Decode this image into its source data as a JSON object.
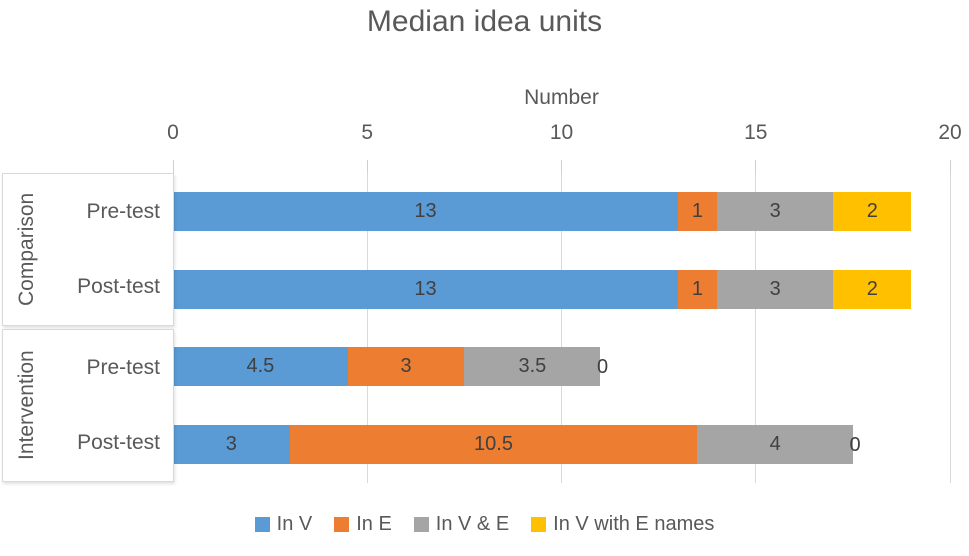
{
  "title": "Median idea units",
  "x_axis": {
    "title": "Number",
    "tick_values": [
      0,
      5,
      10,
      15,
      20
    ]
  },
  "groups": [
    {
      "label": "Comparison",
      "rows": [
        "Pre-test",
        "Post-test"
      ]
    },
    {
      "label": "Intervention",
      "rows": [
        "Pre-test",
        "Post-test"
      ]
    }
  ],
  "chart_data": {
    "type": "bar",
    "orientation": "horizontal",
    "stacked": true,
    "title": "Median idea units",
    "xlabel": "Number",
    "xlim": [
      0,
      20
    ],
    "xticks": [
      0,
      5,
      10,
      15,
      20
    ],
    "grid": true,
    "legend_position": "bottom",
    "categories": [
      "Comparison Pre-test",
      "Comparison Post-test",
      "Intervention Pre-test",
      "Intervention Post-test"
    ],
    "series": [
      {
        "name": "In V",
        "color": "#5B9BD5",
        "values": [
          13,
          13,
          4.5,
          3
        ]
      },
      {
        "name": "In E",
        "color": "#ED7D31",
        "values": [
          1,
          1,
          3,
          10.5
        ]
      },
      {
        "name": "In V & E",
        "color": "#A5A5A5",
        "values": [
          3,
          3,
          3.5,
          4
        ]
      },
      {
        "name": "In V with E names",
        "color": "#FFC000",
        "values": [
          2,
          2,
          0,
          0
        ]
      }
    ],
    "colors": {
      "text": "#595959",
      "data_label": "#404040",
      "gridline": "#D9D9D9",
      "box_border": "#D9D9D9"
    }
  }
}
